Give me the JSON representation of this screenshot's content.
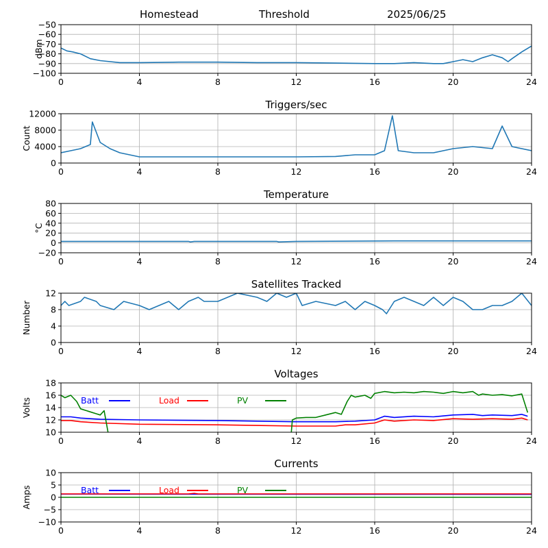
{
  "header": {
    "site": "Homestead",
    "mode": "Threshold",
    "date": "2025/06/25"
  },
  "colors": {
    "primary": "#1f77b4",
    "batt": "#0000ff",
    "load": "#ff0000",
    "pv": "#008000",
    "grid": "#b0b0b0"
  },
  "chart_data": [
    {
      "type": "line",
      "title": "",
      "ylabel": "dBm",
      "xlim": [
        0,
        24
      ],
      "ylim": [
        -100,
        -50
      ],
      "xticks": [
        0,
        4,
        8,
        12,
        16,
        20,
        24
      ],
      "yticks": [
        -100,
        -90,
        -80,
        -70,
        -60,
        -50
      ],
      "grid": true,
      "series": [
        {
          "x": [
            0,
            0.3,
            0.6,
            1,
            1.5,
            2,
            3,
            4,
            6,
            8,
            10,
            12,
            14,
            16,
            17,
            18,
            19,
            19.5,
            20,
            20.5,
            21,
            21.5,
            22,
            22.5,
            22.8,
            23,
            23.5,
            24
          ],
          "values": [
            -74,
            -77,
            -78,
            -80,
            -85,
            -87,
            -89,
            -89,
            -88.5,
            -88.5,
            -89,
            -89,
            -89.5,
            -90,
            -90,
            -89,
            -90,
            -90,
            -88,
            -86,
            -88,
            -84,
            -81,
            -84,
            -88,
            -85,
            -78,
            -72
          ]
        }
      ]
    },
    {
      "type": "line",
      "title": "Triggers/sec",
      "ylabel": "Count",
      "xlim": [
        0,
        24
      ],
      "ylim": [
        0,
        12000
      ],
      "xticks": [
        0,
        4,
        8,
        12,
        16,
        20,
        24
      ],
      "yticks": [
        0,
        4000,
        8000,
        12000
      ],
      "grid": true,
      "series": [
        {
          "x": [
            0,
            0.5,
            1,
            1.5,
            1.6,
            2,
            2.5,
            3,
            4,
            6,
            8,
            10,
            12,
            14,
            15,
            16,
            16.5,
            16.9,
            17.2,
            18,
            19,
            20,
            21,
            22,
            22.5,
            23,
            24
          ],
          "values": [
            2500,
            3000,
            3500,
            4500,
            10000,
            5000,
            3500,
            2500,
            1500,
            1500,
            1500,
            1500,
            1500,
            1600,
            2000,
            2000,
            3000,
            11500,
            3000,
            2500,
            2500,
            3500,
            4000,
            3500,
            9000,
            4000,
            3000
          ]
        }
      ]
    },
    {
      "type": "line",
      "title": "Temperature",
      "ylabel": "°C",
      "xlim": [
        0,
        24
      ],
      "ylim": [
        -20,
        80
      ],
      "xticks": [
        0,
        4,
        8,
        12,
        16,
        20,
        24
      ],
      "yticks": [
        -20,
        0,
        20,
        40,
        60,
        80
      ],
      "grid": true,
      "series": [
        {
          "x": [
            0,
            6.5,
            6.6,
            6.8,
            11,
            11.1,
            12,
            17,
            24
          ],
          "values": [
            3,
            3,
            2,
            3,
            3,
            2,
            3,
            4,
            4
          ]
        }
      ]
    },
    {
      "type": "line",
      "title": "Satellites Tracked",
      "ylabel": "Number",
      "xlim": [
        0,
        24
      ],
      "ylim": [
        0,
        12
      ],
      "xticks": [
        0,
        4,
        8,
        12,
        16,
        20,
        24
      ],
      "yticks": [
        0,
        4,
        8,
        12
      ],
      "grid": true,
      "series": [
        {
          "x": [
            0,
            0.2,
            0.4,
            1,
            1.2,
            1.8,
            2,
            2.7,
            3.2,
            4,
            4.5,
            5,
            5.5,
            6,
            6.5,
            7,
            7.3,
            8,
            8.5,
            9,
            10,
            10.5,
            11,
            11.5,
            12,
            12.3,
            13,
            14,
            14.5,
            15,
            15.5,
            16,
            16.4,
            16.6,
            17,
            17.5,
            18,
            18.5,
            19,
            19.5,
            20,
            20.5,
            21,
            21.5,
            22,
            22.5,
            23,
            23.5,
            24
          ],
          "values": [
            9,
            10,
            9,
            10,
            11,
            10,
            9,
            8,
            10,
            9,
            8,
            9,
            10,
            8,
            10,
            11,
            10,
            10,
            11,
            12,
            11,
            10,
            12,
            11,
            12,
            9,
            10,
            9,
            10,
            8,
            10,
            9,
            8,
            7,
            10,
            11,
            10,
            9,
            11,
            9,
            11,
            10,
            8,
            8,
            9,
            9,
            10,
            12,
            9
          ]
        }
      ]
    },
    {
      "type": "line",
      "title": "Voltages",
      "ylabel": "Volts",
      "xlim": [
        0,
        24
      ],
      "ylim": [
        10,
        18
      ],
      "xticks": [
        0,
        4,
        8,
        12,
        16,
        20,
        24
      ],
      "yticks": [
        10,
        12,
        14,
        16,
        18
      ],
      "grid": true,
      "legend": "top-left",
      "series": [
        {
          "name": "Batt",
          "x": [
            0,
            0.5,
            1,
            2,
            4,
            8,
            12,
            14,
            15,
            16,
            16.5,
            17,
            18,
            19,
            20,
            21,
            21.5,
            22,
            23,
            23.5,
            23.8
          ],
          "values": [
            12.5,
            12.5,
            12.3,
            12.1,
            12.0,
            11.9,
            11.7,
            11.7,
            11.8,
            12.0,
            12.6,
            12.4,
            12.6,
            12.5,
            12.8,
            12.9,
            12.7,
            12.8,
            12.7,
            12.9,
            12.6
          ]
        },
        {
          "name": "Load",
          "x": [
            0,
            0.5,
            1,
            2,
            4,
            8,
            12,
            14,
            14.5,
            15,
            16,
            16.5,
            17,
            18,
            19,
            20,
            21,
            22,
            23,
            23.5,
            23.8
          ],
          "values": [
            11.9,
            11.9,
            11.7,
            11.5,
            11.3,
            11.2,
            11.0,
            11.0,
            11.2,
            11.2,
            11.5,
            12.0,
            11.8,
            12.0,
            11.9,
            12.2,
            12.1,
            12.2,
            12.1,
            12.3,
            12.0
          ]
        },
        {
          "name": "PV",
          "x": [
            0,
            0.2,
            0.5,
            0.8,
            1,
            1.5,
            1.8,
            2,
            2.2,
            2.4,
            2.45,
            11.75,
            11.8,
            12,
            12.5,
            13,
            13.5,
            14,
            14.3,
            14.6,
            14.8,
            15,
            15.5,
            15.8,
            16,
            16.5,
            17,
            17.5,
            18,
            18.5,
            19,
            19.5,
            20,
            20.5,
            21,
            21.3,
            21.5,
            22,
            22.5,
            23,
            23.5,
            23.8
          ],
          "values": [
            16.0,
            15.6,
            16.0,
            15.0,
            13.8,
            13.3,
            13.0,
            12.8,
            13.5,
            10.0,
            null,
            10.0,
            12.0,
            12.3,
            12.4,
            12.4,
            12.8,
            13.2,
            12.9,
            15.0,
            16.0,
            15.7,
            16.0,
            15.5,
            16.3,
            16.6,
            16.4,
            16.5,
            16.4,
            16.6,
            16.5,
            16.3,
            16.6,
            16.4,
            16.6,
            16.0,
            16.2,
            16.0,
            16.1,
            15.9,
            16.2,
            13.2
          ]
        }
      ]
    },
    {
      "type": "line",
      "title": "Currents",
      "ylabel": "Amps",
      "xlim": [
        0,
        24
      ],
      "ylim": [
        -10,
        10
      ],
      "xticks": [
        0,
        4,
        8,
        12,
        16,
        20,
        24
      ],
      "yticks": [
        -10,
        -5,
        0,
        5,
        10
      ],
      "grid": true,
      "legend": "top-left",
      "series": [
        {
          "name": "Batt",
          "x": [
            0,
            24
          ],
          "values": [
            1.3,
            1.2
          ]
        },
        {
          "name": "Load",
          "x": [
            0,
            6.5,
            6.8,
            7,
            12,
            24
          ],
          "values": [
            1.4,
            1.4,
            1.6,
            1.4,
            1.4,
            1.4
          ]
        },
        {
          "name": "PV",
          "x": [
            0,
            24
          ],
          "values": [
            0,
            0
          ]
        }
      ]
    }
  ]
}
